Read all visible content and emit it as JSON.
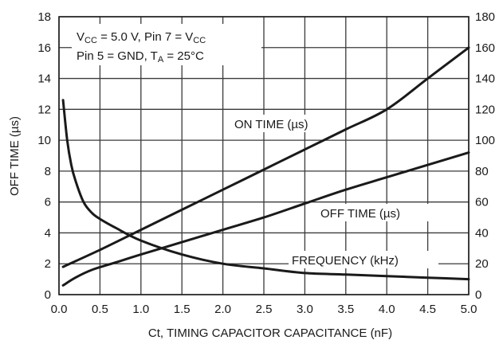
{
  "chart_data": {
    "type": "line",
    "xlabel": "Ct, TIMING CAPACITOR CAPACITANCE (nF)",
    "ylabel": "OFF TIME (µs)",
    "xlim": [
      0,
      5.0
    ],
    "ylim": [
      0,
      18
    ],
    "y2lim": [
      0,
      180
    ],
    "grid": true,
    "x_ticks": [
      "0.0",
      "0.5",
      "1.0",
      "1.5",
      "2.0",
      "2.5",
      "3.0",
      "3.5",
      "4.0",
      "4.5",
      "5.0"
    ],
    "y_ticks": [
      "0",
      "2",
      "4",
      "6",
      "8",
      "10",
      "12",
      "14",
      "16",
      "18"
    ],
    "y2_ticks": [
      "0",
      "20",
      "40",
      "60",
      "80",
      "100",
      "120",
      "140",
      "160",
      "180"
    ],
    "conditions": {
      "line1": {
        "a": "V",
        "a_sub": "CC",
        "b": " = 5.0 V, Pin 7 = V",
        "b_sub": "CC"
      },
      "line2": {
        "a": "Pin 5 = GND, T",
        "a_sub": "A",
        "b": " = 25°C"
      }
    },
    "series": [
      {
        "name": "ON TIME (µs)",
        "axis": "left",
        "x": [
          0.05,
          0.5,
          1.0,
          1.5,
          2.0,
          2.5,
          3.0,
          3.5,
          4.0,
          4.5,
          5.0
        ],
        "y": [
          1.8,
          2.9,
          4.2,
          5.5,
          6.8,
          8.1,
          9.4,
          10.7,
          12.0,
          14.0,
          16.0
        ]
      },
      {
        "name": "OFF TIME (µs)",
        "axis": "left",
        "x": [
          0.05,
          0.2,
          0.4,
          0.7,
          1.0,
          1.5,
          2.0,
          2.5,
          3.0,
          3.5,
          4.0,
          4.5,
          5.0
        ],
        "y": [
          0.6,
          1.1,
          1.6,
          2.1,
          2.6,
          3.4,
          4.2,
          5.0,
          5.9,
          6.8,
          7.6,
          8.4,
          9.2
        ]
      },
      {
        "name": "FREQUENCY (kHz)",
        "axis": "right",
        "x": [
          0.05,
          0.1,
          0.15,
          0.2,
          0.3,
          0.4,
          0.5,
          0.7,
          1.0,
          1.5,
          2.0,
          2.5,
          3.0,
          3.5,
          4.0,
          4.5,
          5.0
        ],
        "y": [
          126,
          100,
          84,
          74,
          60,
          53,
          49,
          43,
          35,
          26,
          20,
          17,
          14,
          13,
          12,
          11,
          10
        ]
      }
    ]
  }
}
